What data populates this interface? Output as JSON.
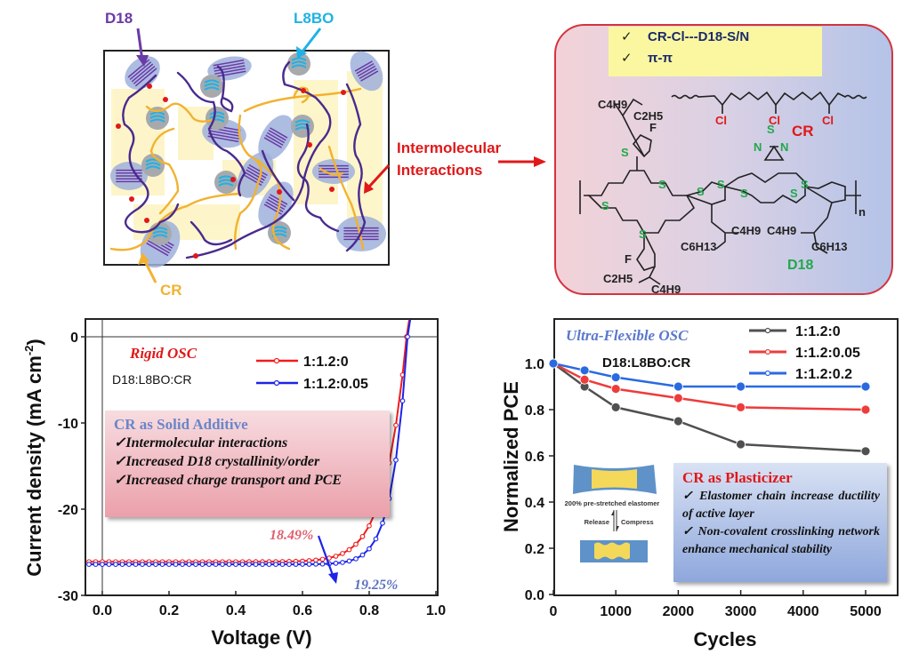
{
  "schematic": {
    "labels": {
      "d18": "D18",
      "l8bo": "L8BO",
      "cr": "CR",
      "interactions": [
        "Intermolecular",
        "Interactions"
      ]
    },
    "colors": {
      "d18": "#6a3aa6",
      "l8bo": "#1fb2e6",
      "cr": "#f2b230",
      "arrow": "#e01818"
    }
  },
  "chemistry": {
    "interactions": [
      {
        "check": "✓",
        "text": "CR-Cl---D18-S/N"
      },
      {
        "check": "✓",
        "text": "π-π"
      }
    ],
    "cr_label": "CR",
    "cl_labels": [
      "Cl",
      "Cl",
      "Cl"
    ],
    "d18_label": "D18",
    "atoms": {
      "S": "S",
      "N": "N",
      "F": "F",
      "n": "n"
    },
    "side_chains": [
      "C4H9",
      "C2H5",
      "C2H5",
      "C4H9",
      "C4H9",
      "C6H13",
      "C4H9",
      "C6H13"
    ]
  },
  "chart_data": [
    {
      "type": "line",
      "title": "Rigid OSC",
      "subtitle": "D18:L8BO:CR",
      "xlabel": "Voltage (V)",
      "ylabel": "Current density (mA cm-2)",
      "ylabel_main": "Current density (mA cm",
      "ylabel_sup": "-2",
      "ylabel_end": ")",
      "xlim": [
        -0.05,
        1.0
      ],
      "ylim": [
        -30,
        2
      ],
      "xticks": [
        0.0,
        0.2,
        0.4,
        0.6,
        0.8,
        1.0
      ],
      "xtick_labels": [
        "0.0",
        "0.2",
        "0.4",
        "0.6",
        "0.8",
        "1.0"
      ],
      "yticks": [
        0,
        -10,
        -20,
        -30
      ],
      "ytick_labels": [
        "0",
        "-10",
        "-20",
        "-30"
      ],
      "legend_position": "top-right",
      "series": [
        {
          "name": "1:1.2:0",
          "color": "#f01c1c",
          "jsc": -26.1,
          "voc": 0.912,
          "shape": 14,
          "pce_label": "18.49%"
        },
        {
          "name": "1:1.2:0.05",
          "color": "#1c24e8",
          "jsc": -26.4,
          "voc": 0.915,
          "shape": 20,
          "pce_label": "19.25%"
        }
      ],
      "annotation": {
        "title": "CR as Solid Additive",
        "items": [
          "✓Intermolecular interactions",
          "✓Increased D18 crystallinity/order",
          "✓Increased charge transport and PCE"
        ]
      }
    },
    {
      "type": "line",
      "title": "Ultra-Flexible OSC",
      "subtitle": "D18:L8BO:CR",
      "xlabel": "Cycles",
      "ylabel": "Normalized PCE",
      "xlim": [
        0,
        5500
      ],
      "ylim": [
        0,
        1.2
      ],
      "xticks": [
        0,
        1000,
        2000,
        3000,
        4000,
        5000
      ],
      "xtick_labels": [
        "0",
        "1000",
        "2000",
        "3000",
        "4000",
        "5000"
      ],
      "yticks": [
        0.0,
        0.2,
        0.4,
        0.6,
        0.8,
        1.0
      ],
      "ytick_labels": [
        "0.0",
        "0.2",
        "0.4",
        "0.6",
        "0.8",
        "1.0"
      ],
      "legend_position": "top-right",
      "x": [
        0,
        500,
        1000,
        2000,
        3000,
        5000
      ],
      "series": [
        {
          "name": "1:1.2:0",
          "color": "#505050",
          "values": [
            1.0,
            0.9,
            0.81,
            0.75,
            0.65,
            0.62
          ]
        },
        {
          "name": "1:1.2:0.05",
          "color": "#ee3c3c",
          "values": [
            1.0,
            0.93,
            0.89,
            0.85,
            0.81,
            0.8
          ]
        },
        {
          "name": "1:1.2:0.2",
          "color": "#2a6ae0",
          "values": [
            1.0,
            0.97,
            0.94,
            0.9,
            0.9,
            0.9
          ]
        }
      ],
      "inset": {
        "caption": "200% pre-stretched elastomer",
        "release": "Release",
        "compress": "Compress"
      },
      "annotation": {
        "title": "CR as Plasticizer",
        "items": [
          "✓  Elastomer chain increase ductility of active layer",
          "✓  Non-covalent crosslinking network enhance mechanical stability"
        ]
      }
    }
  ]
}
